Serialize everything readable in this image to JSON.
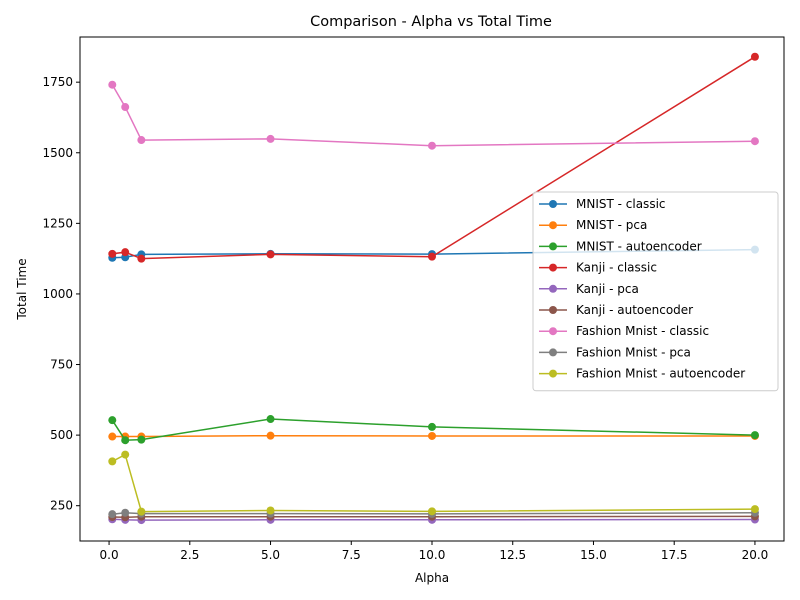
{
  "chart_data": {
    "type": "line",
    "title": "Comparison - Alpha vs Total Time",
    "xlabel": "Alpha",
    "ylabel": "Total Time",
    "xlim": [
      -0.9,
      20.9
    ],
    "ylim": [
      125,
      1910
    ],
    "xticks": [
      0.0,
      2.5,
      5.0,
      7.5,
      10.0,
      12.5,
      15.0,
      17.5,
      20.0
    ],
    "xtick_labels": [
      "0.0",
      "2.5",
      "5.0",
      "7.5",
      "10.0",
      "12.5",
      "15.0",
      "17.5",
      "20.0"
    ],
    "yticks": [
      250,
      500,
      750,
      1000,
      1250,
      1500,
      1750
    ],
    "ytick_labels": [
      "250",
      "500",
      "750",
      "1000",
      "1250",
      "1500",
      "1750"
    ],
    "grid": false,
    "legend_position": "center-right",
    "x": [
      0.1,
      0.5,
      1,
      5,
      10,
      20
    ],
    "series": [
      {
        "name": "MNIST - classic",
        "color": "#1f77b4",
        "values": [
          1128,
          1130,
          1140,
          1142,
          1141,
          1157
        ]
      },
      {
        "name": "MNIST - pca",
        "color": "#ff7f0e",
        "values": [
          495,
          495,
          495,
          498,
          497,
          497
        ]
      },
      {
        "name": "MNIST - autoencoder",
        "color": "#2ca02c",
        "values": [
          553,
          482,
          484,
          557,
          529,
          500
        ]
      },
      {
        "name": "Kanji - classic",
        "color": "#d62728",
        "values": [
          1142,
          1148,
          1125,
          1140,
          1132,
          1840
        ]
      },
      {
        "name": "Kanji - pca",
        "color": "#9467bd",
        "values": [
          202,
          200,
          199,
          200,
          200,
          201
        ]
      },
      {
        "name": "Kanji - autoencoder",
        "color": "#8c564b",
        "values": [
          210,
          209,
          211,
          211,
          211,
          212
        ]
      },
      {
        "name": "Fashion Mnist - classic",
        "color": "#e377c2",
        "values": [
          1741,
          1662,
          1545,
          1549,
          1525,
          1541
        ]
      },
      {
        "name": "Fashion Mnist - pca",
        "color": "#7f7f7f",
        "values": [
          220,
          225,
          222,
          222,
          221,
          225
        ]
      },
      {
        "name": "Fashion Mnist - autoencoder",
        "color": "#bcbd22",
        "values": [
          407,
          431,
          229,
          233,
          230,
          238
        ]
      }
    ]
  }
}
